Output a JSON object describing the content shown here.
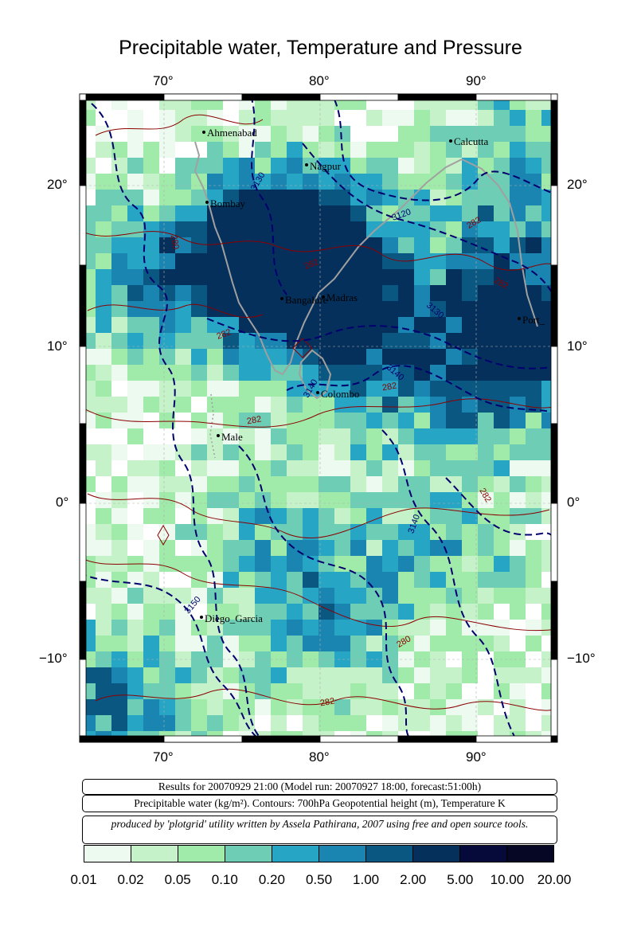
{
  "title": "Precipitable water, Temperature and Pressure",
  "axes": {
    "lon_ticks": [
      "70°",
      "80°",
      "90°"
    ],
    "lat_ticks": [
      "20°",
      "10°",
      "0°",
      "−10°"
    ]
  },
  "cities": [
    {
      "name": "Ahmenabad"
    },
    {
      "name": "Nagpur"
    },
    {
      "name": "Calcutta"
    },
    {
      "name": "Bombay"
    },
    {
      "name": "Bangalore"
    },
    {
      "name": "Madras"
    },
    {
      "name": "Port_"
    },
    {
      "name": "Colombo"
    },
    {
      "name": "Male"
    },
    {
      "name": "Diego_Garcia"
    }
  ],
  "contour_labels": [
    "3130",
    "3120",
    "282",
    "280",
    "282",
    "282",
    "3130",
    "3140",
    "282",
    "3140",
    "282",
    "282",
    "3140",
    "3150",
    "280",
    "282",
    "282"
  ],
  "info": {
    "results": "Results for 20070929 21:00 (Model run: 20070927 18:00, forecast:51:00h)",
    "legend": "Precipitable water (kg/m²).  Contours: 700hPa Geopotential height (m), Temperature K",
    "credit": "produced by 'plotgrid' utility written by Assela Pathirana, 2007 using free and open source tools."
  },
  "colorbar": {
    "labels": [
      "0.01",
      "0.02",
      "0.05",
      "0.10",
      "0.20",
      "0.50",
      "1.00",
      "2.00",
      "5.00",
      "10.00",
      "20.00"
    ],
    "colors": [
      "#ecfaf0",
      "#c5f2c8",
      "#a0ebaa",
      "#6ecdb5",
      "#27a5c5",
      "#1a85b0",
      "#0a5782",
      "#06305c",
      "#050a3a",
      "#050724"
    ]
  },
  "map_colors": {
    "land_outline": "#a0a0a0",
    "height_contour": "#00006e",
    "temp_contour": "#8b0000"
  }
}
